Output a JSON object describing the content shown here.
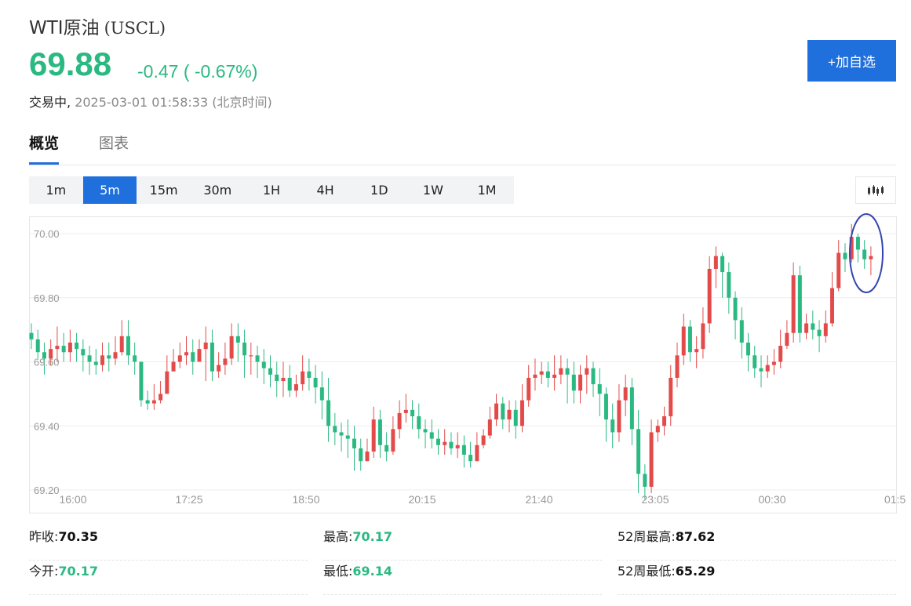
{
  "header": {
    "name": "WTI原油",
    "code": "(USCL)",
    "price": "69.88",
    "change": "-0.47 ( -0.67%)",
    "status": "交易中,",
    "timestamp": "2025-03-01 01:58:33 (北京时间)",
    "add_button": "+加自选"
  },
  "tabs": [
    {
      "label": "概览",
      "active": true
    },
    {
      "label": "图表",
      "active": false
    }
  ],
  "periods": [
    {
      "label": "1m",
      "active": false
    },
    {
      "label": "5m",
      "active": true
    },
    {
      "label": "15m",
      "active": false
    },
    {
      "label": "30m",
      "active": false
    },
    {
      "label": "1H",
      "active": false
    },
    {
      "label": "4H",
      "active": false
    },
    {
      "label": "1D",
      "active": false
    },
    {
      "label": "1W",
      "active": false
    },
    {
      "label": "1M",
      "active": false
    }
  ],
  "colors": {
    "up": "#e34b4b",
    "down": "#2bb982",
    "accent": "#1f6fdc",
    "annotation": "#3346b0"
  },
  "chart_toggle_icon": "candlestick-icon",
  "chart_data": {
    "type": "candlestick",
    "ylim": [
      69.2,
      70.05
    ],
    "y_ticks": [
      "70.00",
      "69.80",
      "69.60",
      "69.40",
      "69.20"
    ],
    "x_ticks": [
      "16:00",
      "17:25",
      "18:50",
      "20:15",
      "21:40",
      "23:05",
      "00:30",
      "01:5"
    ],
    "grid": true,
    "close": [
      69.67,
      69.63,
      69.61,
      69.64,
      69.65,
      69.63,
      69.66,
      69.64,
      69.62,
      69.6,
      69.59,
      69.62,
      69.61,
      69.63,
      69.68,
      69.62,
      69.6,
      69.48,
      69.47,
      69.48,
      69.5,
      69.57,
      69.6,
      69.62,
      69.63,
      69.6,
      69.64,
      69.66,
      69.57,
      69.59,
      69.61,
      69.68,
      69.66,
      69.62,
      69.62,
      69.6,
      69.58,
      69.56,
      69.54,
      69.55,
      69.51,
      69.53,
      69.57,
      69.55,
      69.52,
      69.48,
      69.4,
      69.38,
      69.37,
      69.36,
      69.33,
      69.29,
      69.32,
      69.42,
      69.34,
      69.32,
      69.39,
      69.44,
      69.45,
      69.43,
      69.39,
      69.38,
      69.36,
      69.34,
      69.35,
      69.33,
      69.34,
      69.31,
      69.29,
      69.34,
      69.37,
      69.42,
      69.47,
      69.42,
      69.45,
      69.4,
      69.48,
      69.55,
      69.56,
      69.57,
      69.55,
      69.56,
      69.58,
      69.56,
      69.51,
      69.56,
      69.58,
      69.53,
      69.5,
      69.42,
      69.38,
      69.48,
      69.52,
      69.39,
      69.25,
      69.21,
      69.38,
      69.4,
      69.43,
      69.55,
      69.62,
      69.71,
      69.63,
      69.64,
      69.72,
      69.89,
      69.93,
      69.88,
      69.8,
      69.73,
      69.66,
      69.62,
      69.58,
      69.57,
      69.59,
      69.6,
      69.65,
      69.69,
      69.87,
      69.69,
      69.72,
      69.7,
      69.68,
      69.72,
      69.83,
      69.94,
      69.92,
      69.99,
      69.95,
      69.92,
      69.93
    ],
    "high": [
      69.72,
      69.7,
      69.66,
      69.67,
      69.71,
      69.69,
      69.7,
      69.69,
      69.67,
      69.65,
      69.64,
      69.66,
      69.66,
      69.68,
      69.73,
      69.73,
      69.66,
      69.6,
      69.51,
      69.53,
      69.54,
      69.62,
      69.64,
      69.66,
      69.68,
      69.67,
      69.67,
      69.71,
      69.7,
      69.63,
      69.66,
      69.72,
      69.72,
      69.7,
      69.66,
      69.65,
      69.64,
      69.62,
      69.6,
      69.6,
      69.59,
      69.56,
      69.62,
      69.61,
      69.59,
      69.57,
      69.55,
      69.44,
      69.41,
      69.42,
      69.4,
      69.36,
      69.36,
      69.46,
      69.45,
      69.38,
      69.43,
      69.48,
      69.5,
      69.48,
      69.47,
      69.42,
      69.42,
      69.39,
      69.39,
      69.38,
      69.38,
      69.37,
      69.35,
      69.38,
      69.39,
      69.46,
      69.5,
      69.49,
      69.48,
      69.48,
      69.53,
      69.59,
      69.61,
      69.6,
      69.6,
      69.62,
      69.62,
      69.61,
      69.6,
      69.59,
      69.62,
      69.6,
      69.58,
      69.52,
      69.47,
      69.53,
      69.56,
      69.55,
      69.45,
      69.28,
      69.42,
      69.42,
      69.46,
      69.59,
      69.66,
      69.75,
      69.73,
      69.68,
      69.77,
      69.93,
      69.96,
      69.94,
      69.91,
      69.82,
      69.77,
      69.69,
      69.65,
      69.62,
      69.62,
      69.64,
      69.7,
      69.73,
      69.91,
      69.9,
      69.75,
      69.76,
      69.73,
      69.76,
      69.88,
      69.98,
      69.97,
      70.03,
      70.0,
      69.98,
      69.96
    ],
    "low": [
      69.64,
      69.61,
      69.56,
      69.59,
      69.6,
      69.6,
      69.6,
      69.6,
      69.57,
      69.56,
      69.56,
      69.57,
      69.57,
      69.59,
      69.62,
      69.59,
      69.56,
      69.46,
      69.45,
      69.45,
      69.47,
      69.53,
      69.57,
      69.58,
      69.59,
      69.56,
      69.6,
      69.54,
      69.54,
      69.55,
      69.56,
      69.59,
      69.6,
      69.55,
      69.56,
      69.55,
      69.53,
      69.52,
      69.49,
      69.49,
      69.49,
      69.49,
      69.51,
      69.51,
      69.47,
      69.42,
      69.35,
      69.34,
      69.32,
      69.3,
      69.26,
      69.26,
      69.29,
      69.3,
      69.3,
      69.29,
      69.31,
      69.36,
      69.41,
      69.39,
      69.36,
      69.33,
      69.33,
      69.31,
      69.31,
      69.31,
      69.3,
      69.27,
      69.27,
      69.3,
      69.33,
      69.36,
      69.4,
      69.39,
      69.38,
      69.36,
      69.38,
      69.46,
      69.51,
      69.53,
      69.52,
      69.51,
      69.53,
      69.47,
      69.47,
      69.47,
      69.5,
      69.49,
      69.43,
      69.35,
      69.33,
      69.35,
      69.43,
      69.34,
      69.19,
      69.17,
      69.19,
      69.35,
      69.37,
      69.4,
      69.52,
      69.59,
      69.6,
      69.58,
      69.61,
      69.69,
      69.83,
      69.8,
      69.75,
      69.67,
      69.61,
      69.57,
      69.55,
      69.52,
      69.55,
      69.56,
      69.58,
      69.64,
      69.66,
      69.66,
      69.67,
      69.67,
      69.63,
      69.66,
      69.71,
      69.82,
      69.88,
      69.91,
      69.91,
      69.89,
      69.87
    ],
    "width_note_hidden": ""
  },
  "stats": [
    {
      "label": "昨收:",
      "value": "70.35",
      "color": "dark"
    },
    {
      "label": "最高:",
      "value": "70.17",
      "color": "green"
    },
    {
      "label": "52周最高:",
      "value": "87.62",
      "color": "dark"
    },
    {
      "label": "今开:",
      "value": "70.17",
      "color": "green"
    },
    {
      "label": "最低:",
      "value": "69.14",
      "color": "green"
    },
    {
      "label": "52周最低:",
      "value": "65.29",
      "color": "dark"
    }
  ]
}
